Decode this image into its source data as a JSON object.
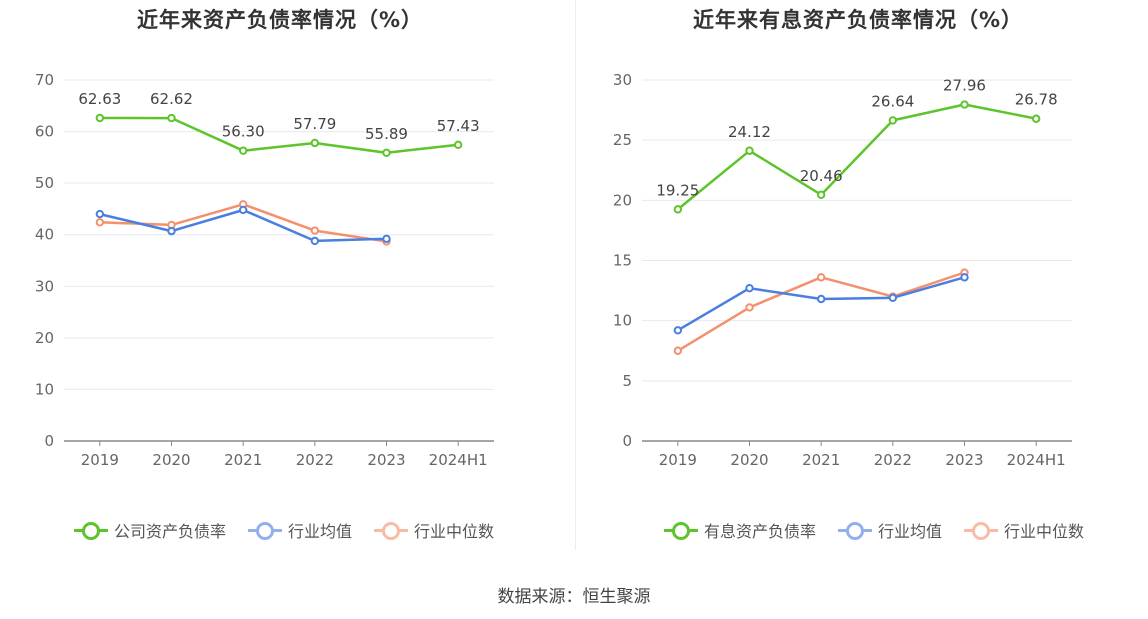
{
  "source": "数据来源：恒生聚源",
  "colors": {
    "company": "#5dc42b",
    "avg": "#4a7ee0",
    "median": "#f4906b"
  },
  "chart_data": [
    {
      "type": "line",
      "title": "近年来资产负债率情况（%）",
      "categories": [
        "2019",
        "2020",
        "2021",
        "2022",
        "2023",
        "2024H1"
      ],
      "ylim": [
        0,
        70
      ],
      "yticks": [
        0,
        10,
        20,
        30,
        40,
        50,
        60,
        70
      ],
      "legend_position": "bottom",
      "grid": true,
      "series": [
        {
          "name": "公司资产负债率",
          "values": [
            62.63,
            62.62,
            56.3,
            57.79,
            55.89,
            57.43
          ],
          "labels": [
            "62.63",
            "62.62",
            "56.30",
            "57.79",
            "55.89",
            "57.43"
          ]
        },
        {
          "name": "行业均值",
          "values": [
            44.0,
            40.7,
            44.8,
            38.8,
            39.2,
            null
          ]
        },
        {
          "name": "行业中位数",
          "values": [
            42.4,
            41.9,
            45.9,
            40.8,
            38.7,
            null
          ]
        }
      ]
    },
    {
      "type": "line",
      "title": "近年来有息资产负债率情况（%）",
      "categories": [
        "2019",
        "2020",
        "2021",
        "2022",
        "2023",
        "2024H1"
      ],
      "ylim": [
        0,
        30
      ],
      "yticks": [
        0,
        5,
        10,
        15,
        20,
        25,
        30
      ],
      "legend_position": "bottom",
      "grid": true,
      "series": [
        {
          "name": "有息资产负债率",
          "values": [
            19.25,
            24.12,
            20.46,
            26.64,
            27.96,
            26.78
          ],
          "labels": [
            "19.25",
            "24.12",
            "20.46",
            "26.64",
            "27.96",
            "26.78"
          ]
        },
        {
          "name": "行业均值",
          "values": [
            9.2,
            12.7,
            11.8,
            11.9,
            13.6,
            null
          ]
        },
        {
          "name": "行业中位数",
          "values": [
            7.5,
            11.1,
            13.6,
            12.0,
            14.0,
            null
          ]
        }
      ]
    }
  ]
}
